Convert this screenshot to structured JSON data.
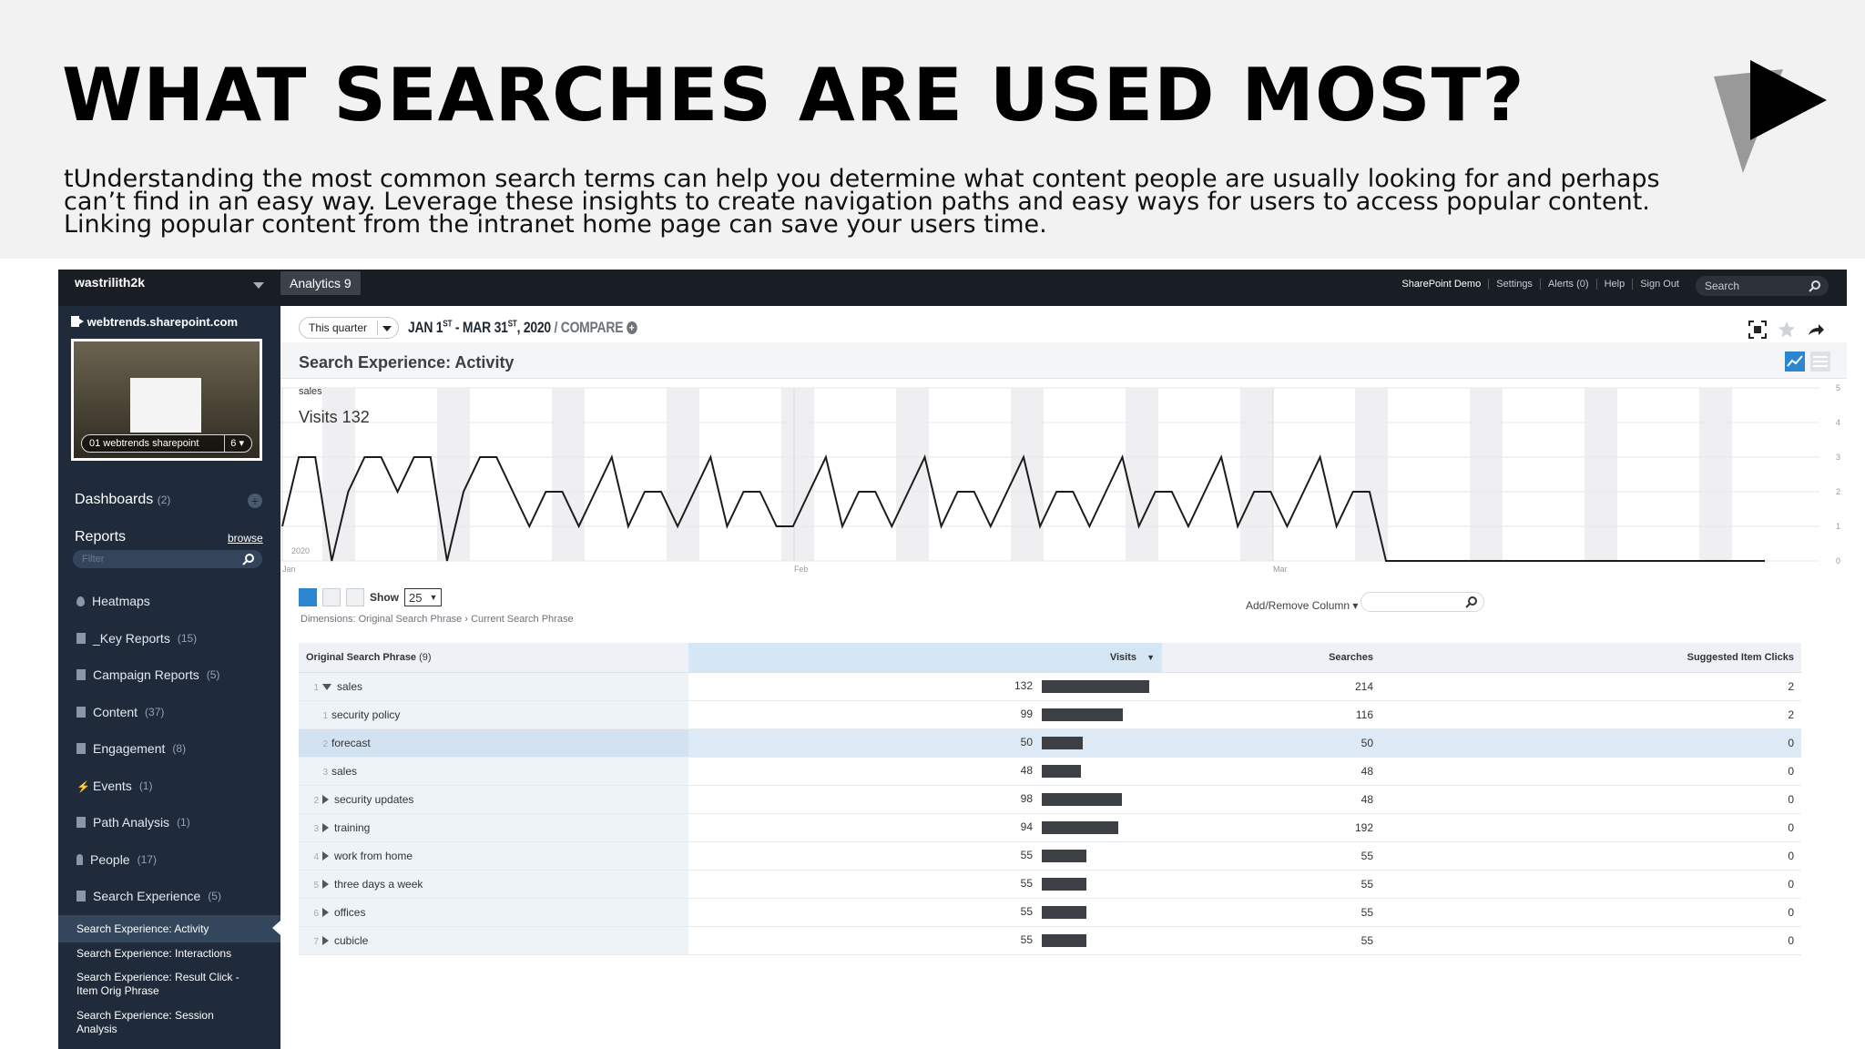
{
  "slide": {
    "title": "WHAT SEARCHES ARE USED MOST?",
    "body": "tUnderstanding the most common search terms can help you determine what content people are usually looking for and perhaps can’t find in an easy way. Leverage these insights to create navigation paths and easy ways for users to access popular content. Linking popular content from the intranet home page can save your users time."
  },
  "topbar": {
    "account": "wastrilith2k",
    "product": "Analytics 9",
    "links": [
      "SharePoint Demo",
      "Settings",
      "Alerts (0)",
      "Help",
      "Sign Out"
    ],
    "search_placeholder": "Search"
  },
  "sidebar": {
    "site": "webtrends.sharepoint.com",
    "thumb_caption": "01 webtrends sharepoint",
    "thumb_count": "6 ▾",
    "dashboards": "Dashboards",
    "dashboards_count": "(2)",
    "reports": "Reports",
    "browse": "browse",
    "filter_placeholder": "Filter",
    "items": [
      {
        "label": "Heatmaps",
        "count": ""
      },
      {
        "label": "_Key Reports",
        "count": "(15)"
      },
      {
        "label": "Campaign Reports",
        "count": "(5)"
      },
      {
        "label": "Content",
        "count": "(37)"
      },
      {
        "label": "Engagement",
        "count": "(8)"
      },
      {
        "label": "Events",
        "count": "(1)"
      },
      {
        "label": "Path Analysis",
        "count": "(1)"
      },
      {
        "label": "People",
        "count": "(17)"
      },
      {
        "label": "Search Experience",
        "count": "(5)"
      }
    ],
    "subitems": [
      "Search Experience: Activity",
      "Search Experience: Interactions",
      "Search Experience: Result Click - Item Orig Phrase",
      "Search Experience: Session Analysis"
    ]
  },
  "main": {
    "period": "This quarter",
    "range_start": "JAN 1",
    "range_start_sup": "ST",
    "range_mid": " - MAR 31",
    "range_end_sup": "ST",
    "range_year": ", 2020",
    "compare": "/ COMPARE",
    "report_title": "Search Experience: Activity",
    "chart_label": "sales",
    "chart_visits": "Visits 132",
    "show_label": "Show",
    "show_value": "25",
    "dimensions": "Dimensions: Original Search Phrase › Current Search Phrase",
    "add_remove": "Add/Remove Column ▾"
  },
  "chart_data": {
    "type": "line",
    "title": "",
    "xlabel": "",
    "ylabel": "",
    "ylim": [
      0,
      5
    ],
    "y_ticks": [
      "5",
      "4",
      "3",
      "2",
      "1",
      "0"
    ],
    "x_tick_labels": [
      "2020",
      "Jan",
      "Feb",
      "Mar"
    ],
    "series": [
      {
        "name": "sales",
        "values": [
          1,
          3,
          3,
          0,
          2,
          3,
          3,
          2,
          3,
          3,
          0,
          2,
          3,
          3,
          2,
          1,
          2,
          2,
          1,
          2,
          3,
          1,
          2,
          2,
          1,
          2,
          3,
          1,
          2,
          2,
          1,
          1,
          2,
          3,
          1,
          2,
          2,
          1,
          2,
          3,
          1,
          2,
          2,
          1,
          2,
          3,
          1,
          2,
          2,
          1,
          2,
          3,
          1,
          2,
          2,
          1,
          2,
          3,
          1,
          2,
          2,
          1,
          2,
          3,
          1,
          2,
          2,
          0,
          0,
          0,
          0,
          0,
          0,
          0,
          0,
          0,
          0,
          0,
          0,
          0,
          0,
          0,
          0,
          0,
          0,
          0,
          0,
          0,
          0,
          0,
          0
        ]
      }
    ]
  },
  "table": {
    "headers": {
      "phrase": "Original Search Phrase",
      "phrase_count": "(9)",
      "visits": "Visits",
      "searches": "Searches",
      "clicks": "Suggested Item Clicks"
    },
    "max_visits": 132,
    "rows": [
      {
        "num": "1",
        "expand": "open",
        "phrase": "sales",
        "visits": 132,
        "searches": "214",
        "clicks": "2"
      },
      {
        "num": "1",
        "expand": "",
        "phrase": "security policy",
        "visits": 99,
        "searches": "116",
        "clicks": "2",
        "child": true
      },
      {
        "num": "2",
        "expand": "",
        "phrase": "forecast",
        "visits": 50,
        "searches": "50",
        "clicks": "0",
        "child": true,
        "highlight": true
      },
      {
        "num": "3",
        "expand": "",
        "phrase": "sales",
        "visits": 48,
        "searches": "48",
        "clicks": "0",
        "child": true
      },
      {
        "num": "2",
        "expand": "closed",
        "phrase": "security updates",
        "visits": 98,
        "searches": "48",
        "clicks": "0"
      },
      {
        "num": "3",
        "expand": "closed",
        "phrase": "training",
        "visits": 94,
        "searches": "192",
        "clicks": "0"
      },
      {
        "num": "4",
        "expand": "closed",
        "phrase": "work from home",
        "visits": 55,
        "searches": "55",
        "clicks": "0"
      },
      {
        "num": "5",
        "expand": "closed",
        "phrase": "three days a week",
        "visits": 55,
        "searches": "55",
        "clicks": "0"
      },
      {
        "num": "6",
        "expand": "closed",
        "phrase": "offices",
        "visits": 55,
        "searches": "55",
        "clicks": "0"
      },
      {
        "num": "7",
        "expand": "closed",
        "phrase": "cubicle",
        "visits": 55,
        "searches": "55",
        "clicks": "0"
      }
    ]
  }
}
